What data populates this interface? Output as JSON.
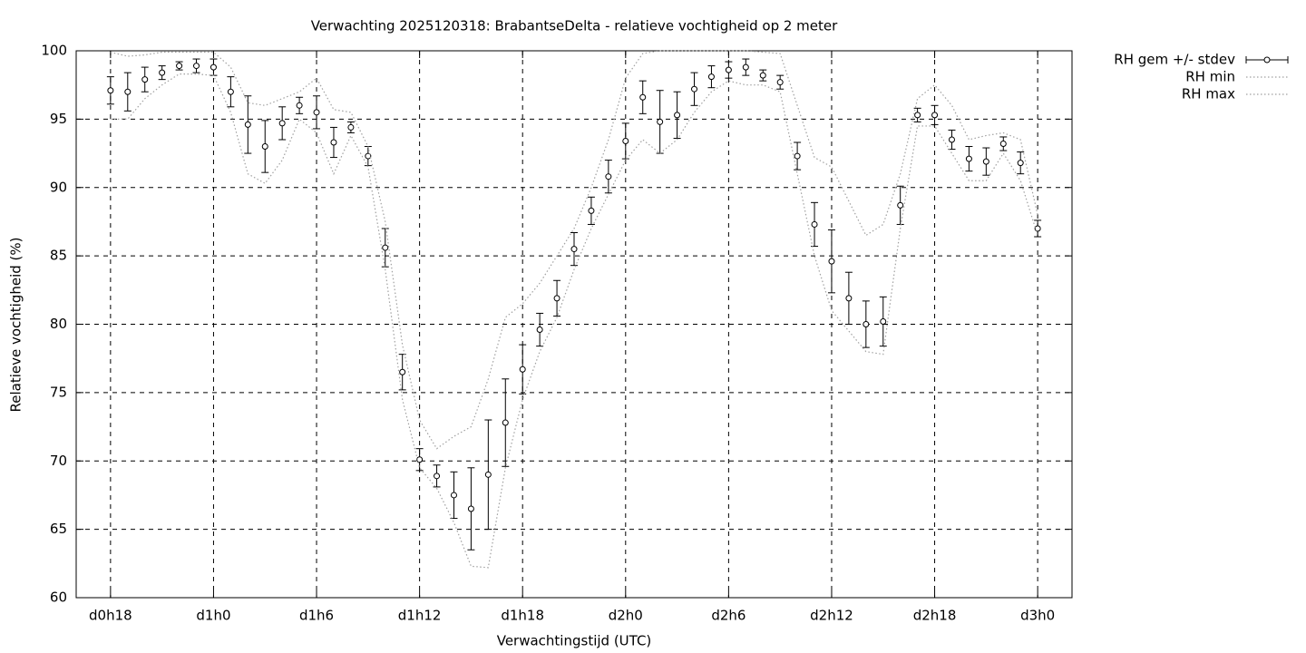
{
  "chart_data": {
    "type": "errorbar",
    "title": "Verwachting 2025120318: BrabantseDelta - relatieve vochtigheid op 2 meter",
    "xlabel": "Verwachtingstijd (UTC)",
    "ylabel": "Relatieve vochtigheid (%)",
    "x": [
      18,
      19,
      20,
      21,
      22,
      23,
      24,
      25,
      26,
      27,
      28,
      29,
      30,
      31,
      32,
      33,
      34,
      35,
      36,
      37,
      38,
      39,
      40,
      41,
      42,
      43,
      44,
      45,
      46,
      47,
      48,
      49,
      50,
      51,
      52,
      53,
      54,
      55,
      56,
      57,
      58,
      59,
      60,
      61,
      62,
      63,
      64,
      65,
      66,
      67,
      68,
      69,
      70,
      71,
      72
    ],
    "series": [
      {
        "name": "RH gem +/- stdev",
        "color": "#000000",
        "style": "errorbar",
        "values": [
          97.1,
          97.0,
          97.9,
          98.4,
          98.9,
          98.9,
          98.8,
          97.0,
          94.6,
          93.0,
          94.7,
          96.0,
          95.5,
          93.3,
          94.4,
          92.3,
          85.6,
          76.5,
          70.1,
          68.9,
          67.5,
          66.5,
          69.0,
          72.8,
          76.7,
          79.6,
          81.9,
          85.5,
          88.3,
          90.8,
          93.4,
          96.6,
          94.8,
          95.3,
          97.2,
          98.1,
          98.6,
          98.8,
          98.2,
          97.7,
          92.3,
          87.3,
          84.6,
          81.9,
          80.0,
          80.2,
          88.7,
          95.3,
          95.3,
          93.5,
          92.1,
          91.9,
          93.2,
          91.8,
          87.0
        ],
        "errors": [
          1.0,
          1.4,
          0.9,
          0.5,
          0.3,
          0.5,
          0.6,
          1.1,
          2.1,
          1.9,
          1.2,
          0.6,
          1.2,
          1.1,
          0.4,
          0.7,
          1.4,
          1.3,
          0.8,
          0.8,
          1.7,
          3.0,
          4.0,
          3.2,
          1.8,
          1.2,
          1.3,
          1.2,
          1.0,
          1.2,
          1.3,
          1.2,
          2.3,
          1.7,
          1.2,
          0.8,
          0.6,
          0.6,
          0.4,
          0.5,
          1.0,
          1.6,
          2.3,
          1.9,
          1.7,
          1.8,
          1.4,
          0.5,
          0.7,
          0.7,
          0.9,
          1.0,
          0.5,
          0.8,
          0.6
        ]
      },
      {
        "name": "RH min",
        "color": "#a0a0a0",
        "style": "dotted",
        "values": [
          95.0,
          95.0,
          96.5,
          97.5,
          98.3,
          98.3,
          98.2,
          95.5,
          91.0,
          90.3,
          92.0,
          95.0,
          94.0,
          91.0,
          93.8,
          91.5,
          84.0,
          74.5,
          69.5,
          68.0,
          65.5,
          62.3,
          62.2,
          69.5,
          74.5,
          78.0,
          80.5,
          84.0,
          87.0,
          89.5,
          92.0,
          93.5,
          92.5,
          93.5,
          95.5,
          97.0,
          97.8,
          97.5,
          97.5,
          97.0,
          91.0,
          85.0,
          81.0,
          79.5,
          78.0,
          77.8,
          87.0,
          94.5,
          94.5,
          92.5,
          90.5,
          90.5,
          92.5,
          90.5,
          86.5
        ]
      },
      {
        "name": "RH max",
        "color": "#a0a0a0",
        "style": "dotted",
        "values": [
          99.9,
          99.6,
          99.7,
          99.9,
          99.9,
          99.9,
          99.9,
          98.8,
          96.2,
          96.0,
          96.5,
          97.0,
          98.0,
          95.7,
          95.5,
          93.0,
          87.5,
          78.5,
          73.0,
          70.9,
          71.8,
          72.5,
          76.0,
          80.5,
          81.5,
          83.0,
          85.0,
          87.0,
          90.0,
          93.5,
          98.0,
          99.8,
          100,
          100,
          100,
          100,
          100,
          100,
          99.9,
          99.8,
          96.0,
          92.2,
          91.5,
          89.0,
          86.5,
          87.3,
          91.0,
          96.5,
          97.5,
          96.0,
          93.5,
          93.8,
          94.0,
          93.5,
          88.0
        ]
      }
    ],
    "xlim": [
      16,
      74
    ],
    "xticks": [
      {
        "value": 18,
        "label": "d0h18"
      },
      {
        "value": 24,
        "label": "d1h0"
      },
      {
        "value": 30,
        "label": "d1h6"
      },
      {
        "value": 36,
        "label": "d1h12"
      },
      {
        "value": 42,
        "label": "d1h18"
      },
      {
        "value": 48,
        "label": "d2h0"
      },
      {
        "value": 54,
        "label": "d2h6"
      },
      {
        "value": 60,
        "label": "d2h12"
      },
      {
        "value": 66,
        "label": "d2h18"
      },
      {
        "value": 72,
        "label": "d3h0"
      }
    ],
    "ylim": [
      60,
      100
    ],
    "yticks": [
      60,
      65,
      70,
      75,
      80,
      85,
      90,
      95,
      100
    ],
    "grid": true,
    "legend": "right"
  }
}
